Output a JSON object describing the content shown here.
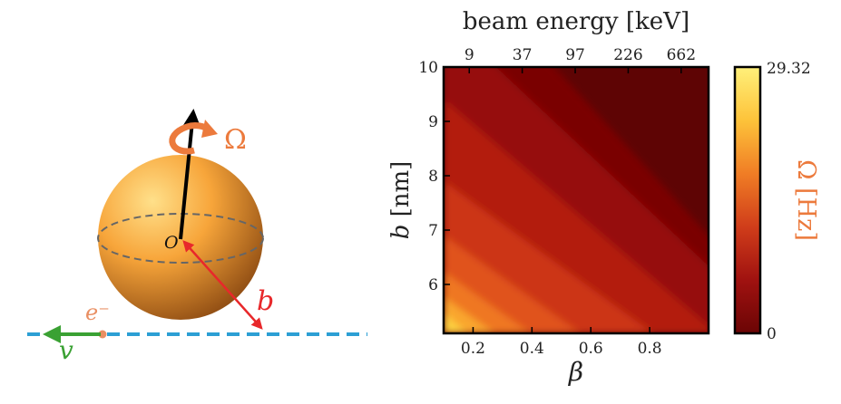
{
  "diagram": {
    "omega_label": "Ω",
    "origin_label": "O",
    "b_label": "b",
    "electron_label": "e⁻",
    "velocity_label": "v",
    "colors": {
      "sphere_light": "#ffe08a",
      "sphere_mid": "#f7a53a",
      "sphere_dark": "#8c4a12",
      "omega": "#ec7a3c",
      "b_arrow": "#e8282b",
      "beam": "#2c9fd4",
      "velocity": "#3aa133",
      "electron": "#e98f63"
    }
  },
  "chart_data": {
    "type": "heatmap",
    "xlabel": "β",
    "ylabel_var": "b",
    "ylabel_unit": "[nm]",
    "top_label": "beam energy [keV]",
    "xlim": [
      0.1,
      1.0
    ],
    "ylim": [
      5.1,
      10
    ],
    "x_ticks": [
      0.2,
      0.4,
      0.6,
      0.8
    ],
    "x_tick_labels": [
      "0.2",
      "0.4",
      "0.6",
      "0.8"
    ],
    "y_ticks": [
      6,
      7,
      8,
      9,
      10
    ],
    "y_tick_labels": [
      "6",
      "7",
      "8",
      "9",
      "10"
    ],
    "top_ticks_beta": [
      0.187,
      0.367,
      0.547,
      0.727,
      0.907
    ],
    "top_tick_labels": [
      "9",
      "37",
      "97",
      "226",
      "662"
    ],
    "colorbar": {
      "label": "Ω [Hz]",
      "min": 0,
      "max": 29.32,
      "min_label": "0",
      "max_label": "29.32",
      "colors": [
        "#6b0505",
        "#a01210",
        "#d03d1a",
        "#f07d25",
        "#fdc33a",
        "#fff07a"
      ]
    }
  }
}
